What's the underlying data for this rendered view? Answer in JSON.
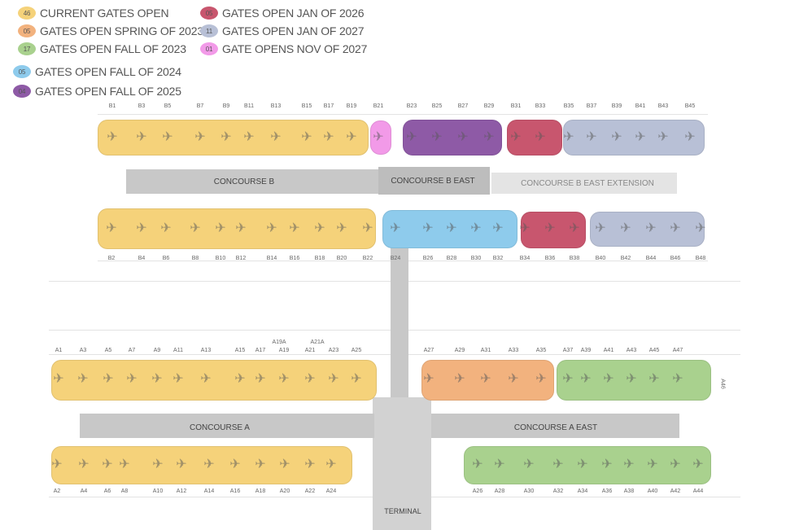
{
  "legend": [
    {
      "count": "46",
      "label": "CURRENT GATES OPEN",
      "color": "#f5d27a"
    },
    {
      "count": "05",
      "label": "GATES OPEN SPRING OF 2023",
      "color": "#f2b27e"
    },
    {
      "count": "17",
      "label": "GATES OPEN FALL OF 2023",
      "color": "#a9d18e"
    },
    {
      "count": "05",
      "label": "GATES OPEN FALL OF 2024",
      "color": "#8ecbec"
    },
    {
      "count": "04",
      "label": "GATES OPEN FALL OF 2025",
      "color": "#8e5aa6"
    },
    {
      "count": "05",
      "label": "GATES OPEN JAN OF 2026",
      "color": "#c8566e"
    },
    {
      "count": "11",
      "label": "GATES OPEN JAN OF 2027",
      "color": "#b8c0d6"
    },
    {
      "count": "01",
      "label": "GATE OPENS NOV OF 2027",
      "color": "#f29ae8"
    }
  ],
  "concourses": {
    "b": "CONCOURSE B",
    "b_east": "CONCOURSE B EAST",
    "b_east_ext": "CONCOURSE B EAST EXTENSION",
    "a": "CONCOURSE A",
    "a_east": "CONCOURSE A EAST",
    "terminal": "TERMINAL"
  },
  "gates": {
    "b_top": [
      "B1",
      "B3",
      "B5",
      "B7",
      "B9",
      "B11",
      "B13",
      "B15",
      "B17",
      "B19",
      "B21",
      "B23",
      "B25",
      "B27",
      "B29",
      "B31",
      "B33",
      "B35",
      "B37",
      "B39",
      "B41",
      "B43",
      "B45"
    ],
    "b_bottom": [
      "B2",
      "B4",
      "B6",
      "B8",
      "B10",
      "B12",
      "B14",
      "B16",
      "B18",
      "B20",
      "B22",
      "B24",
      "B26",
      "B28",
      "B30",
      "B32",
      "B34",
      "B36",
      "B38",
      "B40",
      "B42",
      "B44",
      "B46",
      "B48"
    ],
    "a_top": [
      "A1",
      "A3",
      "A5",
      "A7",
      "A9",
      "A11",
      "A13",
      "A15",
      "A17",
      "A19",
      "A21",
      "A23",
      "A25",
      "A27",
      "A29",
      "A31",
      "A33",
      "A35",
      "A37",
      "A39",
      "A41",
      "A43",
      "A45",
      "A47"
    ],
    "a_top_extra": [
      "A19A",
      "A21A"
    ],
    "a_bottom": [
      "A2",
      "A4",
      "A6",
      "A8",
      "A10",
      "A12",
      "A14",
      "A16",
      "A18",
      "A20",
      "A22",
      "A24",
      "A26",
      "A28",
      "A30",
      "A32",
      "A34",
      "A36",
      "A38",
      "A40",
      "A42",
      "A44"
    ],
    "a_side": "A46"
  }
}
